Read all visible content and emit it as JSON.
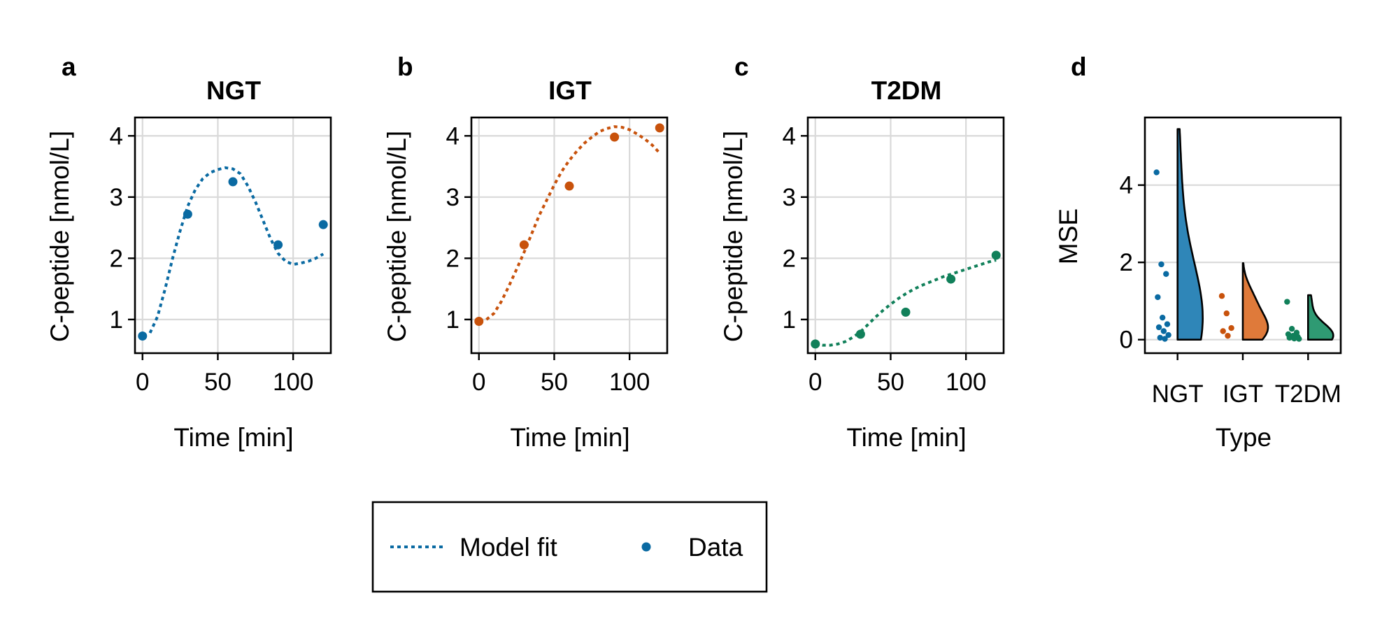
{
  "colors": {
    "NGT": "#0a6aa2",
    "IGT": "#c8520c",
    "T2DM": "#11805a",
    "violin_NGT": "#2f86b8",
    "violin_IGT": "#df7a3a",
    "violin_T2DM": "#2f9a73"
  },
  "legend": {
    "model_fit": "Model fit",
    "data": "Data",
    "marker_color": "#0a6aa2"
  },
  "chart_data": [
    {
      "panel": "a",
      "title": "NGT",
      "type": "line+scatter",
      "color_key": "NGT",
      "xlabel": "Time [min]",
      "ylabel": "C-peptide [nmol/L]",
      "xlim": [
        -5,
        125
      ],
      "ylim": [
        0.45,
        4.3
      ],
      "xticks": [
        0,
        50,
        100
      ],
      "yticks": [
        1,
        2,
        3,
        4
      ],
      "data_points": {
        "x": [
          0,
          30,
          60,
          90,
          120
        ],
        "y": [
          0.73,
          2.72,
          3.25,
          2.22,
          2.55
        ]
      },
      "model_fit": {
        "x": [
          5,
          10,
          15,
          20,
          25,
          30,
          35,
          40,
          45,
          50,
          55,
          60,
          65,
          70,
          75,
          80,
          85,
          90,
          95,
          100,
          105,
          110,
          115,
          120
        ],
        "y": [
          0.78,
          1.05,
          1.5,
          2.0,
          2.45,
          2.85,
          3.12,
          3.3,
          3.4,
          3.45,
          3.48,
          3.46,
          3.38,
          3.18,
          2.92,
          2.62,
          2.32,
          2.08,
          1.95,
          1.9,
          1.92,
          1.95,
          2.0,
          2.07
        ]
      }
    },
    {
      "panel": "b",
      "title": "IGT",
      "type": "line+scatter",
      "color_key": "IGT",
      "xlabel": "Time [min]",
      "ylabel": "C-peptide [nmol/L]",
      "xlim": [
        -5,
        125
      ],
      "ylim": [
        0.45,
        4.3
      ],
      "xticks": [
        0,
        50,
        100
      ],
      "yticks": [
        1,
        2,
        3,
        4
      ],
      "data_points": {
        "x": [
          0,
          30,
          60,
          90,
          120
        ],
        "y": [
          0.97,
          2.22,
          3.18,
          3.98,
          4.13
        ]
      },
      "model_fit": {
        "x": [
          5,
          10,
          15,
          20,
          25,
          30,
          35,
          40,
          45,
          50,
          55,
          60,
          65,
          70,
          75,
          80,
          85,
          90,
          95,
          100,
          105,
          110,
          115,
          120
        ],
        "y": [
          1.0,
          1.1,
          1.3,
          1.55,
          1.82,
          2.1,
          2.4,
          2.7,
          2.95,
          3.2,
          3.42,
          3.6,
          3.75,
          3.88,
          3.98,
          4.07,
          4.12,
          4.15,
          4.14,
          4.1,
          4.03,
          3.95,
          3.85,
          3.72
        ]
      }
    },
    {
      "panel": "c",
      "title": "T2DM",
      "type": "line+scatter",
      "color_key": "T2DM",
      "xlabel": "Time [min]",
      "ylabel": "C-peptide [nmol/L]",
      "xlim": [
        -5,
        125
      ],
      "ylim": [
        0.45,
        4.3
      ],
      "xticks": [
        0,
        50,
        100
      ],
      "yticks": [
        1,
        2,
        3,
        4
      ],
      "data_points": {
        "x": [
          0,
          30,
          60,
          90,
          120
        ],
        "y": [
          0.6,
          0.76,
          1.12,
          1.66,
          2.05
        ]
      },
      "model_fit": {
        "x": [
          0,
          5,
          10,
          15,
          20,
          25,
          30,
          35,
          40,
          45,
          50,
          55,
          60,
          65,
          70,
          75,
          80,
          85,
          90,
          95,
          100,
          105,
          110,
          115,
          120
        ],
        "y": [
          0.6,
          0.58,
          0.58,
          0.6,
          0.64,
          0.71,
          0.8,
          0.92,
          1.04,
          1.15,
          1.25,
          1.34,
          1.42,
          1.49,
          1.55,
          1.6,
          1.65,
          1.7,
          1.74,
          1.78,
          1.82,
          1.86,
          1.9,
          1.94,
          1.97
        ]
      }
    },
    {
      "panel": "d",
      "type": "violin+strip",
      "xlabel": "Type",
      "ylabel": "MSE",
      "categories": [
        "NGT",
        "IGT",
        "T2DM"
      ],
      "ylim": [
        -0.35,
        5.75
      ],
      "yticks": [
        0,
        2,
        4
      ],
      "points": {
        "NGT": [
          4.33,
          1.95,
          1.7,
          1.1,
          0.57,
          0.4,
          0.32,
          0.22,
          0.12,
          0.05,
          0.02
        ],
        "IGT": [
          1.13,
          0.68,
          0.3,
          0.22,
          0.1
        ],
        "T2DM": [
          0.98,
          0.28,
          0.18,
          0.14,
          0.1,
          0.07,
          0.05,
          0.03,
          0.02
        ]
      },
      "violin_range": {
        "NGT": [
          0,
          5.45
        ],
        "IGT": [
          0,
          1.98
        ],
        "T2DM": [
          0,
          1.15
        ]
      }
    }
  ]
}
